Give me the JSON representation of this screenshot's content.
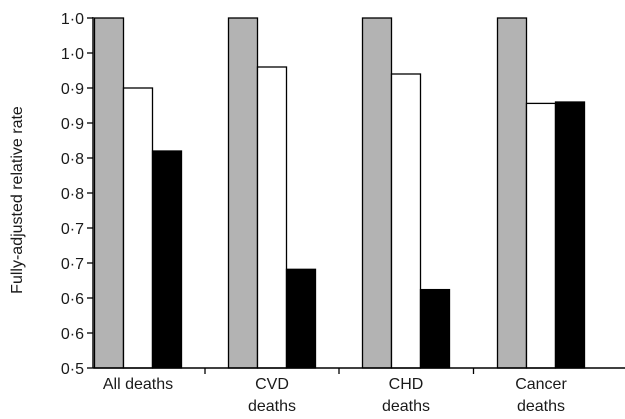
{
  "chart_data": {
    "type": "bar",
    "title": "",
    "xlabel": "",
    "ylabel": "Fully-adjusted relative rate",
    "ylim": [
      0.5,
      1.0
    ],
    "y_ticks": [
      {
        "value": 0.5,
        "label": "0·5"
      },
      {
        "value": 0.55,
        "label": "0·6"
      },
      {
        "value": 0.6,
        "label": "0·6"
      },
      {
        "value": 0.65,
        "label": "0·7"
      },
      {
        "value": 0.7,
        "label": "0·7"
      },
      {
        "value": 0.75,
        "label": "0·8"
      },
      {
        "value": 0.8,
        "label": "0·8"
      },
      {
        "value": 0.85,
        "label": "0·9"
      },
      {
        "value": 0.9,
        "label": "0·9"
      },
      {
        "value": 0.95,
        "label": "1·0"
      },
      {
        "value": 1.0,
        "label": "1·0"
      }
    ],
    "categories": [
      [
        "All deaths"
      ],
      [
        "CVD",
        "deaths"
      ],
      [
        "CHD",
        "deaths"
      ],
      [
        "Cancer",
        "deaths"
      ]
    ],
    "series": [
      {
        "color": "#b3b3b3",
        "values": [
          1.0,
          1.0,
          1.0,
          1.0
        ]
      },
      {
        "color": "#ffffff",
        "values": [
          0.9,
          0.93,
          0.92,
          0.878
        ]
      },
      {
        "color": "#000000",
        "values": [
          0.81,
          0.641,
          0.612,
          0.88
        ]
      }
    ],
    "grid": false,
    "colors": {
      "stroke": "#000000",
      "text": "#1a1a1a"
    }
  }
}
